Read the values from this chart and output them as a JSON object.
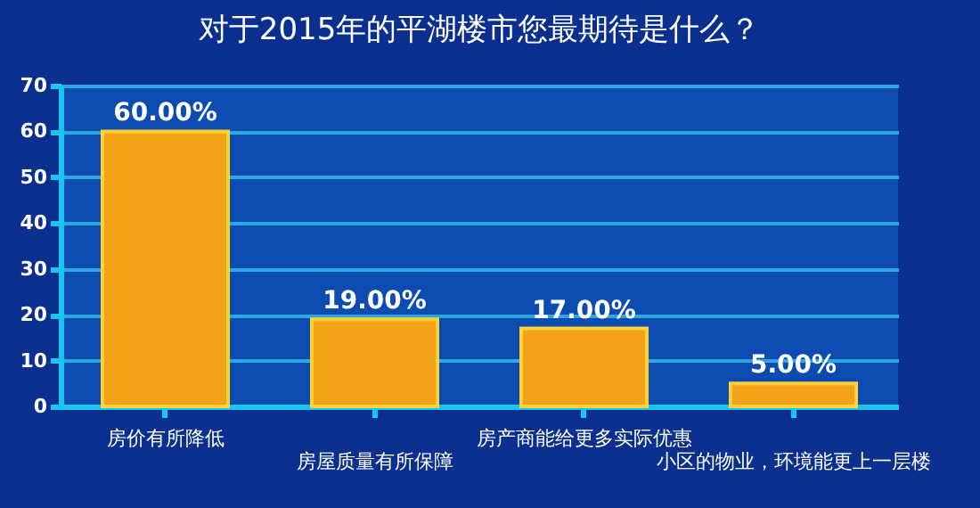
{
  "chart_data": {
    "type": "bar",
    "title": "对于2015年的平湖楼市您最期待是什么？",
    "categories": [
      "房价有所降低",
      "房屋质量有所保障",
      "房产商能给更多实际优惠",
      "小区的物业，环境能更上一层楼"
    ],
    "values": [
      60,
      19,
      17,
      5
    ],
    "value_labels": [
      "60.00%",
      "19.00%",
      "17.00%",
      "5.00%"
    ],
    "color": "#f3a21a",
    "ylim": [
      0,
      70
    ],
    "yticks": [
      0,
      10,
      20,
      30,
      40,
      50,
      60,
      70
    ],
    "grid": "y"
  }
}
